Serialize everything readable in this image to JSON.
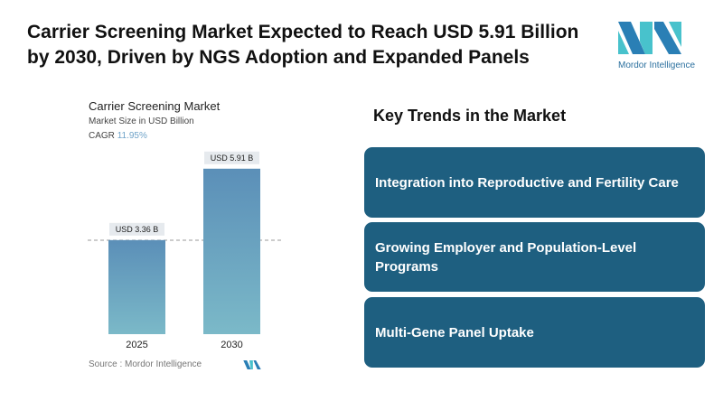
{
  "title": "Carrier Screening Market Expected to Reach USD 5.91 Billion by 2030, Driven by NGS Adoption and Expanded Panels",
  "logo": {
    "text": "Mordor Intelligence"
  },
  "chart": {
    "title": "Carrier Screening Market",
    "subtitle": "Market Size in USD Billion",
    "cagr_label": "CAGR",
    "cagr_value": "11.95%",
    "source": "Source :  Mordor Intelligence"
  },
  "chart_data": {
    "type": "bar",
    "title": "Carrier Screening Market",
    "ylabel": "Market Size in USD Billion",
    "categories": [
      "2025",
      "2030"
    ],
    "values": [
      3.36,
      5.91
    ],
    "data_labels": [
      "USD 3.36 B",
      "USD 5.91 B"
    ],
    "colors": {
      "bar_top": "#5b8fb8",
      "bar_bottom": "#7bb9c8"
    }
  },
  "trends": {
    "heading": "Key Trends in the Market",
    "items": [
      "Integration into Reproductive and Fertility Care",
      "Growing Employer and Population-Level Programs",
      "Multi-Gene Panel Uptake"
    ],
    "color": "#1e5f80"
  }
}
